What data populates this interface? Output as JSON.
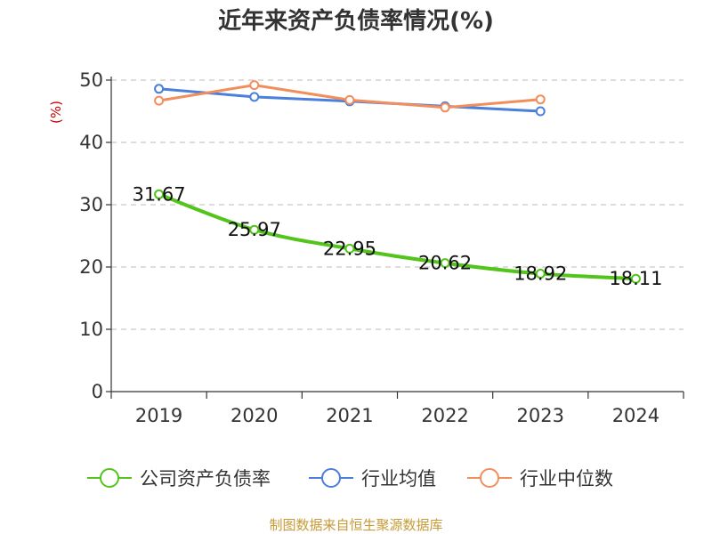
{
  "chart_data": {
    "type": "line",
    "title": "近年来资产负债率情况(%)",
    "ylabel": "(%)",
    "xlabel": "",
    "categories": [
      "2019",
      "2020",
      "2021",
      "2022",
      "2023",
      "2024"
    ],
    "ylim": [
      0,
      50
    ],
    "yticks": [
      0,
      10,
      20,
      30,
      40,
      50
    ],
    "grid": true,
    "legend_position": "bottom",
    "series": [
      {
        "name": "公司资产负债率",
        "color": "#52c41a",
        "values": [
          31.67,
          25.97,
          22.95,
          20.62,
          18.92,
          18.11
        ],
        "labels": [
          "31.67",
          "25.97",
          "22.95",
          "20.62",
          "18.92",
          "18.11"
        ]
      },
      {
        "name": "行业均值",
        "color": "#4a7fdc",
        "values": [
          48.6,
          47.3,
          46.6,
          45.8,
          45.0,
          null
        ]
      },
      {
        "name": "行业中位数",
        "color": "#f28e5b",
        "values": [
          46.7,
          49.2,
          46.8,
          45.6,
          46.9,
          null
        ]
      }
    ]
  },
  "source": "制图数据来自恒生聚源数据库"
}
